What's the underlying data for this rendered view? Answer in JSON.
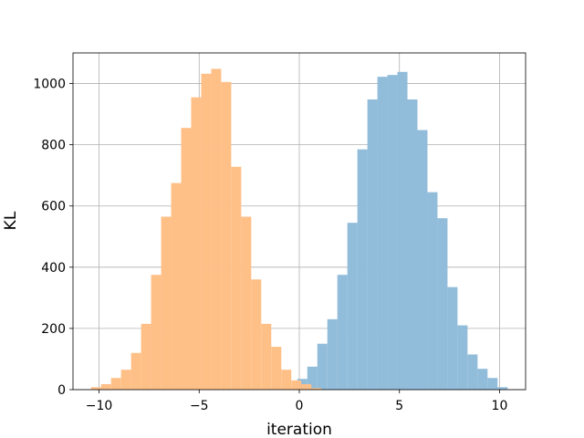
{
  "chart_data": {
    "type": "histogram",
    "xlabel": "iteration",
    "ylabel": "KL",
    "xlim": [
      -11.3,
      11.3
    ],
    "ylim": [
      0,
      1100
    ],
    "xticks": [
      -10,
      -5,
      0,
      5,
      10
    ],
    "xtick_labels": [
      "−10",
      "−5",
      "0",
      "5",
      "10"
    ],
    "yticks": [
      0,
      200,
      400,
      600,
      800,
      1000
    ],
    "ytick_labels": [
      "0",
      "200",
      "400",
      "600",
      "800",
      "1000"
    ],
    "grid": true,
    "series": [
      {
        "color": "#8fbbd9",
        "bins": [
          {
            "x0": -0.1,
            "x1": 0.4,
            "count": 35
          },
          {
            "x0": 0.4,
            "x1": 0.9,
            "count": 75
          },
          {
            "x0": 0.9,
            "x1": 1.4,
            "count": 150
          },
          {
            "x0": 1.4,
            "x1": 1.9,
            "count": 230
          },
          {
            "x0": 1.9,
            "x1": 2.4,
            "count": 375
          },
          {
            "x0": 2.4,
            "x1": 2.9,
            "count": 545
          },
          {
            "x0": 2.9,
            "x1": 3.4,
            "count": 785
          },
          {
            "x0": 3.4,
            "x1": 3.9,
            "count": 948
          },
          {
            "x0": 3.9,
            "x1": 4.4,
            "count": 1022
          },
          {
            "x0": 4.4,
            "x1": 4.9,
            "count": 1028
          },
          {
            "x0": 4.9,
            "x1": 5.4,
            "count": 1038
          },
          {
            "x0": 5.4,
            "x1": 5.9,
            "count": 948
          },
          {
            "x0": 5.9,
            "x1": 6.4,
            "count": 848
          },
          {
            "x0": 6.4,
            "x1": 6.9,
            "count": 645
          },
          {
            "x0": 6.9,
            "x1": 7.4,
            "count": 560
          },
          {
            "x0": 7.4,
            "x1": 7.9,
            "count": 335
          },
          {
            "x0": 7.9,
            "x1": 8.4,
            "count": 210
          },
          {
            "x0": 8.4,
            "x1": 8.9,
            "count": 115
          },
          {
            "x0": 8.9,
            "x1": 9.4,
            "count": 68
          },
          {
            "x0": 9.4,
            "x1": 9.9,
            "count": 38
          },
          {
            "x0": 9.9,
            "x1": 10.4,
            "count": 8
          }
        ]
      },
      {
        "color": "#ffbf86",
        "bins": [
          {
            "x0": -10.4,
            "x1": -9.9,
            "count": 8
          },
          {
            "x0": -9.9,
            "x1": -9.4,
            "count": 18
          },
          {
            "x0": -9.4,
            "x1": -8.9,
            "count": 38
          },
          {
            "x0": -8.9,
            "x1": -8.4,
            "count": 65
          },
          {
            "x0": -8.4,
            "x1": -7.9,
            "count": 120
          },
          {
            "x0": -7.9,
            "x1": -7.4,
            "count": 215
          },
          {
            "x0": -7.4,
            "x1": -6.9,
            "count": 375
          },
          {
            "x0": -6.9,
            "x1": -6.4,
            "count": 565
          },
          {
            "x0": -6.4,
            "x1": -5.9,
            "count": 675
          },
          {
            "x0": -5.9,
            "x1": -5.4,
            "count": 855
          },
          {
            "x0": -5.4,
            "x1": -4.9,
            "count": 955
          },
          {
            "x0": -4.9,
            "x1": -4.4,
            "count": 1032
          },
          {
            "x0": -4.4,
            "x1": -3.9,
            "count": 1048
          },
          {
            "x0": -3.9,
            "x1": -3.4,
            "count": 1005
          },
          {
            "x0": -3.4,
            "x1": -2.9,
            "count": 728
          },
          {
            "x0": -2.9,
            "x1": -2.4,
            "count": 565
          },
          {
            "x0": -2.4,
            "x1": -1.9,
            "count": 360
          },
          {
            "x0": -1.9,
            "x1": -1.4,
            "count": 215
          },
          {
            "x0": -1.4,
            "x1": -0.9,
            "count": 140
          },
          {
            "x0": -0.9,
            "x1": -0.4,
            "count": 65
          },
          {
            "x0": -0.4,
            "x1": 0.1,
            "count": 30
          },
          {
            "x0": 0.1,
            "x1": 0.6,
            "count": 18
          },
          {
            "x0": 0.6,
            "x1": 1.1,
            "count": 5
          }
        ]
      }
    ]
  }
}
